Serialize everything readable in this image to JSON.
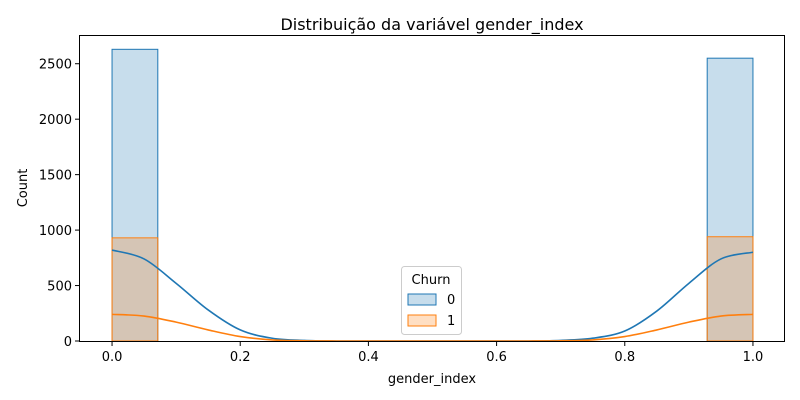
{
  "chart_data": {
    "type": "bar",
    "title": "Distribuição da variável gender_index",
    "xlabel": "gender_index",
    "ylabel": "Count",
    "xlim": [
      -0.05,
      1.05
    ],
    "ylim": [
      0,
      2750
    ],
    "x_ticks": [
      0.0,
      0.2,
      0.4,
      0.6,
      0.8,
      1.0
    ],
    "x_tick_labels": [
      "0.0",
      "0.2",
      "0.4",
      "0.6",
      "0.8",
      "1.0"
    ],
    "y_ticks": [
      0,
      500,
      1000,
      1500,
      2000,
      2500
    ],
    "y_tick_labels": [
      "0",
      "500",
      "1000",
      "1500",
      "2000",
      "2500"
    ],
    "bin_width": 0.0714,
    "bins": [
      0.0,
      0.9286
    ],
    "grid": false,
    "legend": {
      "title": "Churn",
      "position": "bottom-center"
    },
    "series": [
      {
        "name": "0",
        "color": "#1f77b4",
        "values": [
          2630,
          2550
        ],
        "kde": {
          "x": [
            0.0,
            0.05,
            0.1,
            0.15,
            0.2,
            0.25,
            0.3,
            0.35,
            0.4,
            0.45,
            0.5,
            0.55,
            0.6,
            0.65,
            0.7,
            0.75,
            0.8,
            0.85,
            0.9,
            0.95,
            1.0
          ],
          "y": [
            820,
            740,
            520,
            280,
            100,
            25,
            5,
            0,
            0,
            0,
            0,
            0,
            0,
            0,
            5,
            25,
            90,
            270,
            520,
            740,
            800
          ]
        }
      },
      {
        "name": "1",
        "color": "#ff7f0e",
        "values": [
          930,
          940
        ],
        "kde": {
          "x": [
            0.0,
            0.05,
            0.1,
            0.15,
            0.2,
            0.25,
            0.3,
            0.35,
            0.4,
            0.45,
            0.5,
            0.55,
            0.6,
            0.65,
            0.7,
            0.75,
            0.8,
            0.85,
            0.9,
            0.95,
            1.0
          ],
          "y": [
            240,
            225,
            170,
            100,
            40,
            10,
            2,
            0,
            0,
            0,
            0,
            0,
            0,
            0,
            2,
            10,
            40,
            100,
            170,
            225,
            240
          ]
        }
      }
    ]
  }
}
